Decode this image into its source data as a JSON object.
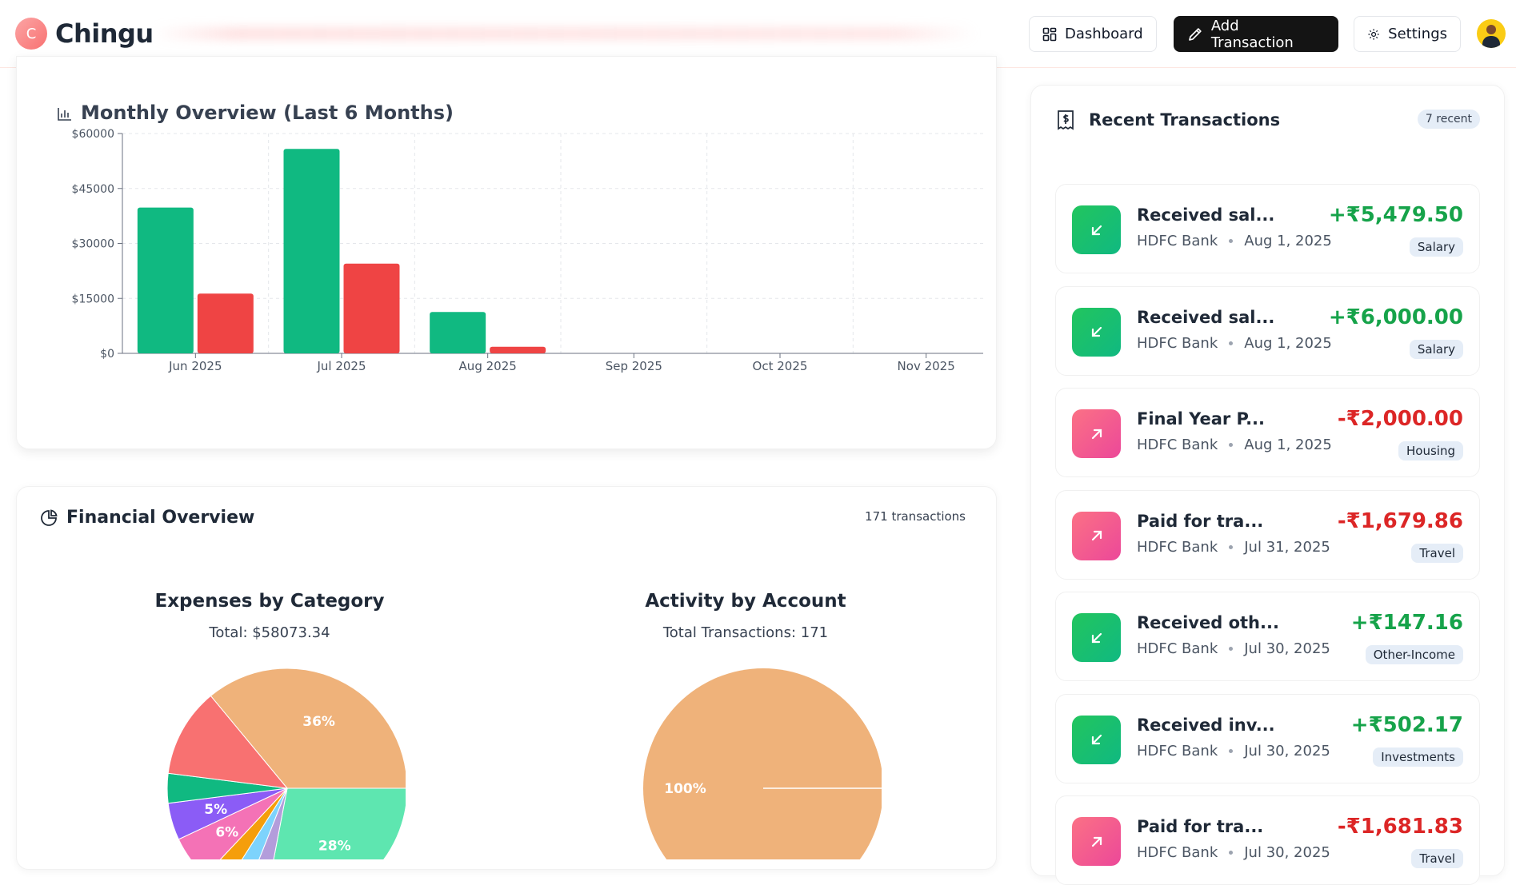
{
  "header": {
    "brand_initial": "C",
    "brand_name": "Chingu",
    "nav": {
      "dashboard": "Dashboard",
      "add_transaction": "Add Transaction",
      "settings": "Settings"
    }
  },
  "monthly": {
    "title": "Monthly Overview (Last 6 Months)"
  },
  "financial": {
    "title": "Financial Overview",
    "count": "171 transactions",
    "expenses_title": "Expenses by Category",
    "expenses_total": "Total: $58073.34",
    "activity_title": "Activity by Account",
    "activity_total": "Total Transactions: 171"
  },
  "recent": {
    "title": "Recent Transactions",
    "badge": "7 recent",
    "items": [
      {
        "title": "Received sal...",
        "bank": "HDFC Bank",
        "date": "Aug 1, 2025",
        "amount": "+₹5,479.50",
        "category": "Salary",
        "type": "in"
      },
      {
        "title": "Received sal...",
        "bank": "HDFC Bank",
        "date": "Aug 1, 2025",
        "amount": "+₹6,000.00",
        "category": "Salary",
        "type": "in"
      },
      {
        "title": "Final Year P...",
        "bank": "HDFC Bank",
        "date": "Aug 1, 2025",
        "amount": "-₹2,000.00",
        "category": "Housing",
        "type": "out"
      },
      {
        "title": "Paid for tra...",
        "bank": "HDFC Bank",
        "date": "Jul 31, 2025",
        "amount": "-₹1,679.86",
        "category": "Travel",
        "type": "out"
      },
      {
        "title": "Received oth...",
        "bank": "HDFC Bank",
        "date": "Jul 30, 2025",
        "amount": "+₹147.16",
        "category": "Other-Income",
        "type": "in"
      },
      {
        "title": "Received inv...",
        "bank": "HDFC Bank",
        "date": "Jul 30, 2025",
        "amount": "+₹502.17",
        "category": "Investments",
        "type": "in"
      },
      {
        "title": "Paid for tra...",
        "bank": "HDFC Bank",
        "date": "Jul 30, 2025",
        "amount": "-₹1,681.83",
        "category": "Travel",
        "type": "out"
      }
    ]
  },
  "colors": {
    "income": "#10b981",
    "expense": "#ef4444",
    "accent_dark": "#141414"
  },
  "chart_data": [
    {
      "type": "bar",
      "categories": [
        "Jun 2025",
        "Jul 2025",
        "Aug 2025",
        "Sep 2025",
        "Oct 2025",
        "Nov 2025"
      ],
      "series": [
        {
          "values": [
            39800,
            55800,
            11300,
            0,
            0,
            0
          ],
          "color": "#10b981"
        },
        {
          "values": [
            16300,
            24500,
            1800,
            0,
            0,
            0
          ],
          "color": "#ef4444"
        }
      ],
      "yticks": [
        "$0",
        "$15000",
        "$30000",
        "$45000",
        "$60000"
      ],
      "ylim": [
        0,
        60000
      ],
      "grid": true
    },
    {
      "type": "pie",
      "title": "Expenses by Category",
      "slices": [
        {
          "value": 36,
          "label": "36%",
          "color": "#efb27a"
        },
        {
          "value": 28,
          "label": "28%",
          "color": "#5ee6b0"
        },
        {
          "value": 3,
          "label": "",
          "color": "#b39ddb"
        },
        {
          "value": 3,
          "label": "",
          "color": "#7dd3fc"
        },
        {
          "value": 3,
          "label": "",
          "color": "#f59e0b"
        },
        {
          "value": 6,
          "label": "6%",
          "color": "#f472b6"
        },
        {
          "value": 5,
          "label": "5%",
          "color": "#8b5cf6"
        },
        {
          "value": 4,
          "label": "",
          "color": "#10b981"
        },
        {
          "value": 12,
          "label": "",
          "color": "#f87171"
        }
      ]
    },
    {
      "type": "pie",
      "title": "Activity by Account",
      "slices": [
        {
          "value": 100,
          "label": "100%",
          "color": "#efb27a"
        }
      ]
    }
  ]
}
